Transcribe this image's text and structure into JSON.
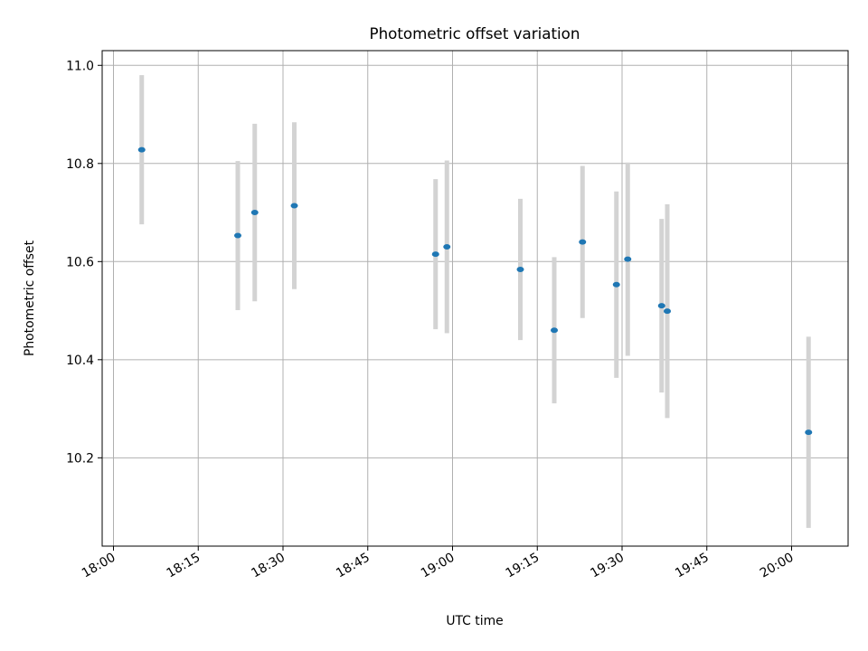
{
  "chart_data": {
    "type": "scatter",
    "title": "Photometric offset variation",
    "xlabel": "UTC time",
    "ylabel": "Photometric offset",
    "x_axis": {
      "kind": "time",
      "range": [
        "17:58",
        "20:10"
      ],
      "ticks": [
        "18:00",
        "18:15",
        "18:30",
        "18:45",
        "19:00",
        "19:15",
        "19:30",
        "19:45",
        "20:00"
      ]
    },
    "y_axis": {
      "range": [
        10.02,
        11.03
      ],
      "ticks": [
        "10.2",
        "10.4",
        "10.6",
        "10.8",
        "11.0"
      ]
    },
    "grid": true,
    "legend": "none",
    "colors": {
      "points": "#1f77b4",
      "errorbars": "#d3d3d3",
      "grid": "#b0b0b0"
    },
    "series": [
      {
        "points": [
          {
            "x": "18:05",
            "y": 10.828,
            "err": 0.152
          },
          {
            "x": "18:22",
            "y": 10.653,
            "err": 0.152
          },
          {
            "x": "18:25",
            "y": 10.7,
            "err": 0.181
          },
          {
            "x": "18:32",
            "y": 10.714,
            "err": 0.17
          },
          {
            "x": "18:57",
            "y": 10.615,
            "err": 0.153
          },
          {
            "x": "18:59",
            "y": 10.63,
            "err": 0.176
          },
          {
            "x": "19:12",
            "y": 10.584,
            "err": 0.144
          },
          {
            "x": "19:18",
            "y": 10.46,
            "err": 0.149
          },
          {
            "x": "19:23",
            "y": 10.64,
            "err": 0.155
          },
          {
            "x": "19:29",
            "y": 10.553,
            "err": 0.19
          },
          {
            "x": "19:31",
            "y": 10.605,
            "err": 0.197
          },
          {
            "x": "19:37",
            "y": 10.51,
            "err": 0.177
          },
          {
            "x": "19:38",
            "y": 10.499,
            "err": 0.218
          },
          {
            "x": "20:03",
            "y": 10.252,
            "err": 0.195
          }
        ]
      }
    ]
  }
}
